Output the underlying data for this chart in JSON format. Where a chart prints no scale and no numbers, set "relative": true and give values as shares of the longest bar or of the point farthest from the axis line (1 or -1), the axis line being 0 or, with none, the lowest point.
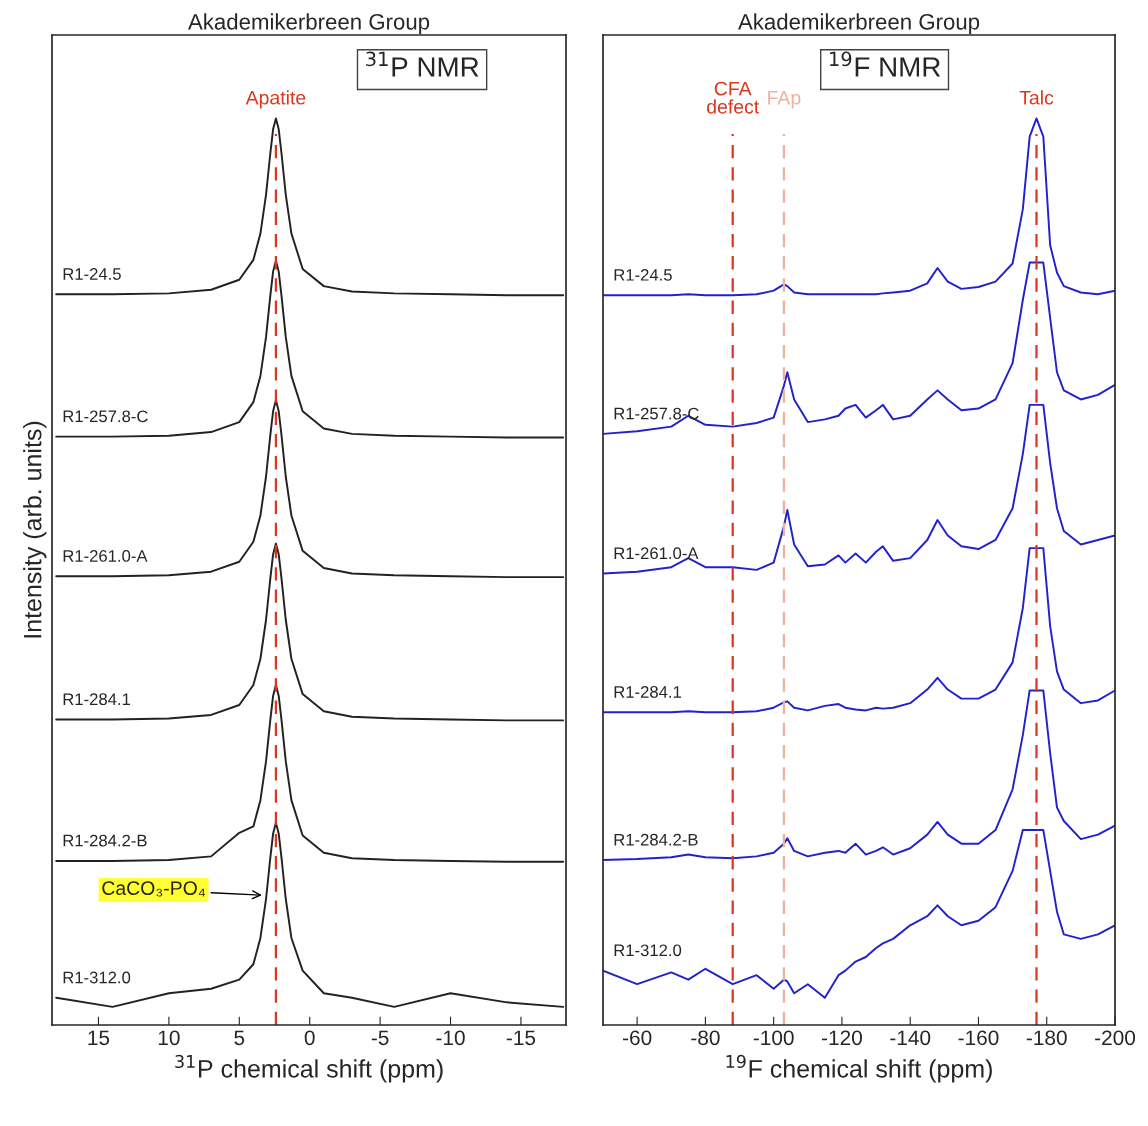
{
  "chart_data": [
    {
      "type": "line",
      "title": "Akademikerbreen Group",
      "xlabel": "$^{31}$P chemical shift (ppm)",
      "ylabel": "Intensity (arb. units)",
      "relative": true,
      "legend": false,
      "marker": "none",
      "line_style": "solid",
      "xlim": [
        18.3,
        -18.2
      ],
      "xticks": [
        15,
        10,
        5,
        0,
        -5,
        -10,
        -15
      ],
      "x": [
        18,
        14,
        10,
        7,
        5,
        4,
        3.5,
        3.1,
        2.8,
        2.6,
        2.4,
        2.2,
        2.0,
        1.7,
        1.3,
        0.5,
        -1,
        -3,
        -6,
        -10,
        -14,
        -18
      ],
      "series": [
        {
          "name": "R1-24.5",
          "color": "#222222",
          "values": [
            0.806,
            0.806,
            0.807,
            0.811,
            0.822,
            0.844,
            0.873,
            0.916,
            0.961,
            0.988,
            1.0,
            0.988,
            0.961,
            0.916,
            0.873,
            0.834,
            0.815,
            0.809,
            0.807,
            0.806,
            0.805,
            0.805
          ]
        },
        {
          "name": "R1-257.8-C",
          "color": "#222222",
          "values": [
            0.649,
            0.649,
            0.65,
            0.654,
            0.665,
            0.687,
            0.716,
            0.759,
            0.804,
            0.831,
            0.843,
            0.831,
            0.804,
            0.759,
            0.716,
            0.677,
            0.658,
            0.652,
            0.65,
            0.649,
            0.648,
            0.648
          ]
        },
        {
          "name": "R1-261.0-A",
          "color": "#222222",
          "values": [
            0.495,
            0.495,
            0.496,
            0.5,
            0.511,
            0.533,
            0.562,
            0.605,
            0.65,
            0.677,
            0.689,
            0.677,
            0.65,
            0.605,
            0.562,
            0.523,
            0.504,
            0.498,
            0.496,
            0.495,
            0.494,
            0.494
          ]
        },
        {
          "name": "R1-284.1",
          "color": "#222222",
          "values": [
            0.337,
            0.337,
            0.338,
            0.342,
            0.353,
            0.375,
            0.404,
            0.447,
            0.492,
            0.519,
            0.531,
            0.519,
            0.492,
            0.447,
            0.404,
            0.365,
            0.346,
            0.34,
            0.338,
            0.337,
            0.336,
            0.336
          ]
        },
        {
          "name": "R1-284.2-B",
          "color": "#222222",
          "values": [
            0.181,
            0.181,
            0.182,
            0.186,
            0.212,
            0.219,
            0.248,
            0.291,
            0.336,
            0.363,
            0.375,
            0.363,
            0.336,
            0.291,
            0.248,
            0.209,
            0.19,
            0.184,
            0.182,
            0.181,
            0.18,
            0.18
          ]
        },
        {
          "name": "R1-312.0",
          "color": "#222222",
          "values": [
            0.03,
            0.02,
            0.035,
            0.04,
            0.05,
            0.067,
            0.096,
            0.139,
            0.184,
            0.211,
            0.223,
            0.211,
            0.184,
            0.139,
            0.096,
            0.06,
            0.035,
            0.03,
            0.02,
            0.035,
            0.025,
            0.02
          ]
        }
      ],
      "ref_lines": [
        {
          "axis": "x",
          "value": 2.4,
          "label": "Apatite",
          "color": "#d9381e",
          "line_style": "dashed"
        }
      ],
      "annotations": [
        "$^{31}$P NMR",
        {
          "text": "CaCO₃-PO₄",
          "x": 3.2,
          "y": 0.143
        }
      ]
    },
    {
      "type": "line",
      "title": "Akademikerbreen Group",
      "xlabel": "$^{19}$F chemical shift (ppm)",
      "relative": true,
      "legend": false,
      "marker": "none",
      "line_style": "solid",
      "xlim": [
        -50,
        -200
      ],
      "xticks": [
        -60,
        -80,
        -100,
        -120,
        -140,
        -160,
        -180,
        -200
      ],
      "x": [
        -50,
        -60,
        -70,
        -75,
        -80,
        -88,
        -95,
        -100,
        -103,
        -104,
        -106,
        -110,
        -115,
        -119,
        -121,
        -124,
        -127,
        -130,
        -132,
        -135,
        -140,
        -145,
        -148,
        -151,
        -155,
        -160,
        -165,
        -170,
        -173,
        -175,
        -177,
        -179,
        -181,
        -183,
        -185,
        -190,
        -195,
        -200
      ],
      "series": [
        {
          "name": "R1-24.5",
          "color": "#2222cc",
          "values": [
            0.805,
            0.805,
            0.805,
            0.806,
            0.805,
            0.805,
            0.806,
            0.81,
            0.817,
            0.815,
            0.808,
            0.806,
            0.806,
            0.806,
            0.806,
            0.806,
            0.806,
            0.806,
            0.807,
            0.808,
            0.81,
            0.818,
            0.835,
            0.82,
            0.812,
            0.814,
            0.82,
            0.84,
            0.9,
            0.98,
            1.0,
            0.98,
            0.86,
            0.83,
            0.815,
            0.808,
            0.806,
            0.81
          ]
        },
        {
          "name": "R1-257.8-C",
          "color": "#2222cc",
          "values": [
            0.652,
            0.655,
            0.66,
            0.672,
            0.662,
            0.66,
            0.664,
            0.67,
            0.705,
            0.72,
            0.69,
            0.665,
            0.668,
            0.672,
            0.68,
            0.684,
            0.67,
            0.678,
            0.684,
            0.668,
            0.672,
            0.69,
            0.7,
            0.69,
            0.678,
            0.68,
            0.69,
            0.73,
            0.8,
            0.841,
            0.841,
            0.841,
            0.78,
            0.72,
            0.7,
            0.69,
            0.695,
            0.706
          ]
        },
        {
          "name": "R1-261.0-A",
          "color": "#2222cc",
          "values": [
            0.498,
            0.5,
            0.505,
            0.515,
            0.505,
            0.505,
            0.502,
            0.51,
            0.55,
            0.568,
            0.53,
            0.506,
            0.508,
            0.518,
            0.51,
            0.52,
            0.51,
            0.522,
            0.528,
            0.512,
            0.515,
            0.535,
            0.557,
            0.54,
            0.528,
            0.525,
            0.535,
            0.57,
            0.63,
            0.684,
            0.684,
            0.684,
            0.62,
            0.57,
            0.545,
            0.53,
            0.535,
            0.54
          ]
        },
        {
          "name": "R1-284.1",
          "color": "#2222cc",
          "values": [
            0.345,
            0.345,
            0.345,
            0.346,
            0.345,
            0.345,
            0.346,
            0.35,
            0.356,
            0.357,
            0.35,
            0.347,
            0.352,
            0.354,
            0.35,
            0.348,
            0.347,
            0.35,
            0.349,
            0.35,
            0.355,
            0.37,
            0.383,
            0.37,
            0.36,
            0.36,
            0.37,
            0.4,
            0.46,
            0.526,
            0.526,
            0.526,
            0.44,
            0.39,
            0.37,
            0.355,
            0.358,
            0.369
          ]
        },
        {
          "name": "R1-284.2-B",
          "color": "#2222cc",
          "values": [
            0.182,
            0.183,
            0.185,
            0.188,
            0.185,
            0.184,
            0.186,
            0.19,
            0.2,
            0.206,
            0.192,
            0.186,
            0.19,
            0.192,
            0.19,
            0.2,
            0.188,
            0.192,
            0.196,
            0.188,
            0.195,
            0.21,
            0.224,
            0.21,
            0.2,
            0.2,
            0.215,
            0.26,
            0.32,
            0.369,
            0.369,
            0.369,
            0.3,
            0.24,
            0.225,
            0.205,
            0.21,
            0.22
          ]
        },
        {
          "name": "R1-312.0",
          "color": "#2222cc",
          "values": [
            0.06,
            0.045,
            0.058,
            0.05,
            0.062,
            0.045,
            0.055,
            0.04,
            0.05,
            0.048,
            0.035,
            0.045,
            0.03,
            0.055,
            0.06,
            0.07,
            0.075,
            0.085,
            0.09,
            0.095,
            0.11,
            0.12,
            0.132,
            0.12,
            0.11,
            0.115,
            0.13,
            0.17,
            0.215,
            0.215,
            0.215,
            0.215,
            0.17,
            0.125,
            0.1,
            0.095,
            0.1,
            0.11
          ]
        }
      ],
      "ref_lines": [
        {
          "axis": "x",
          "value": -88,
          "label": "CFA\ndefect",
          "color": "#d9381e",
          "line_style": "dashed"
        },
        {
          "axis": "x",
          "value": -103,
          "label": "FAp",
          "color": "#f0b0a0",
          "line_style": "dashed"
        },
        {
          "axis": "x",
          "value": -177,
          "label": "Talc",
          "color": "#d9381e",
          "line_style": "dashed"
        }
      ],
      "annotations": [
        "$^{19}$F NMR"
      ]
    }
  ]
}
